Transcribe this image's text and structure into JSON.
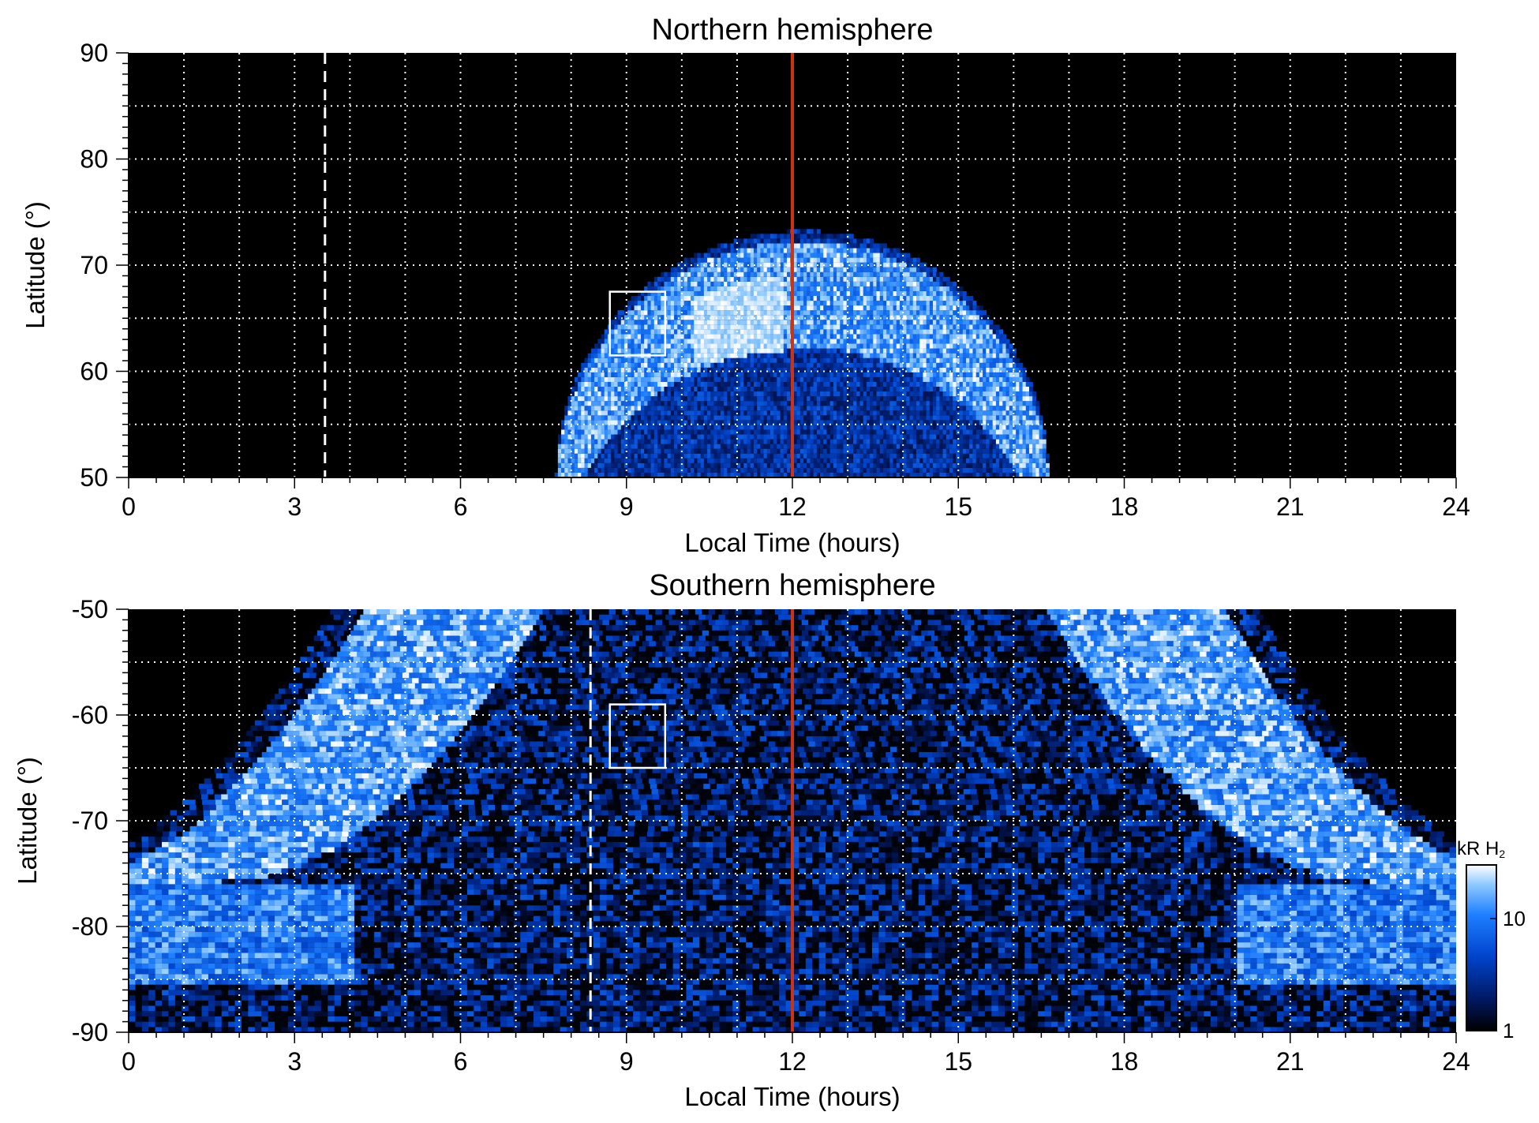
{
  "chart_data": [
    {
      "type": "heatmap",
      "title": "Northern hemisphere",
      "xlabel": "Local Time (hours)",
      "ylabel": "Latitude (°)",
      "xlim": [
        0,
        24
      ],
      "ylim": [
        50,
        90
      ],
      "xticks": [
        "0",
        "3",
        "6",
        "9",
        "12",
        "15",
        "18",
        "21",
        "24"
      ],
      "yticks": [
        "50",
        "60",
        "70",
        "80",
        "90"
      ],
      "xtick_values": [
        0,
        3,
        6,
        9,
        12,
        15,
        18,
        21,
        24
      ],
      "ytick_values": [
        50,
        60,
        70,
        80,
        90
      ],
      "grid": true,
      "background_color": "#000000",
      "emission_region": {
        "lt_min": 7.7,
        "lt_max": 16.6,
        "lat_edge_min": 50,
        "lat_edge_max": 73
      },
      "auroral_oval": {
        "lat_low": 61,
        "lat_high": 72
      },
      "noon_line": {
        "x": 12,
        "color": "#cc3311"
      },
      "dashed_line": {
        "x": 3.55,
        "color": "#ffffff"
      },
      "box": {
        "x_min": 8.7,
        "x_max": 9.7,
        "y_min": 61.5,
        "y_max": 67.5,
        "color": "#ffffff"
      }
    },
    {
      "type": "heatmap",
      "title": "Southern hemisphere",
      "xlabel": "Local Time (hours)",
      "ylabel": "Latitude (°)",
      "xlim": [
        0,
        24
      ],
      "ylim": [
        -90,
        -50
      ],
      "xticks": [
        "0",
        "3",
        "6",
        "9",
        "12",
        "15",
        "18",
        "21",
        "24"
      ],
      "yticks": [
        "-90",
        "-80",
        "-70",
        "-60",
        "-50"
      ],
      "xtick_values": [
        0,
        3,
        6,
        9,
        12,
        15,
        18,
        21,
        24
      ],
      "ytick_values": [
        -90,
        -80,
        -70,
        -60,
        -50
      ],
      "grid": true,
      "background_color": "#000000",
      "auroral_band_left": {
        "lt_top": 5.9,
        "lt_bottom": 0.0,
        "lat_top": -50,
        "lat_bottom": -76
      },
      "auroral_band_right": {
        "lt_top": 18.1,
        "lt_bottom": 24.0,
        "lat_top": -50,
        "lat_bottom": -76
      },
      "noon_line": {
        "x": 12,
        "color": "#cc3311"
      },
      "dashed_line": {
        "x": 8.35,
        "color": "#ffffff"
      },
      "box": {
        "x_min": 8.7,
        "x_max": 9.7,
        "y_min": -65,
        "y_max": -59,
        "color": "#ffffff"
      }
    }
  ],
  "colorbar": {
    "label_prefix": "kR H",
    "label_subscript": "2",
    "ticks": [
      "1",
      "10"
    ],
    "tick_values": [
      1,
      10
    ],
    "range": [
      1,
      30
    ],
    "scale": "log",
    "colors": [
      "#000000",
      "#001a66",
      "#0044cc",
      "#1e7fff",
      "#8cc8ff",
      "#ffffff"
    ]
  }
}
